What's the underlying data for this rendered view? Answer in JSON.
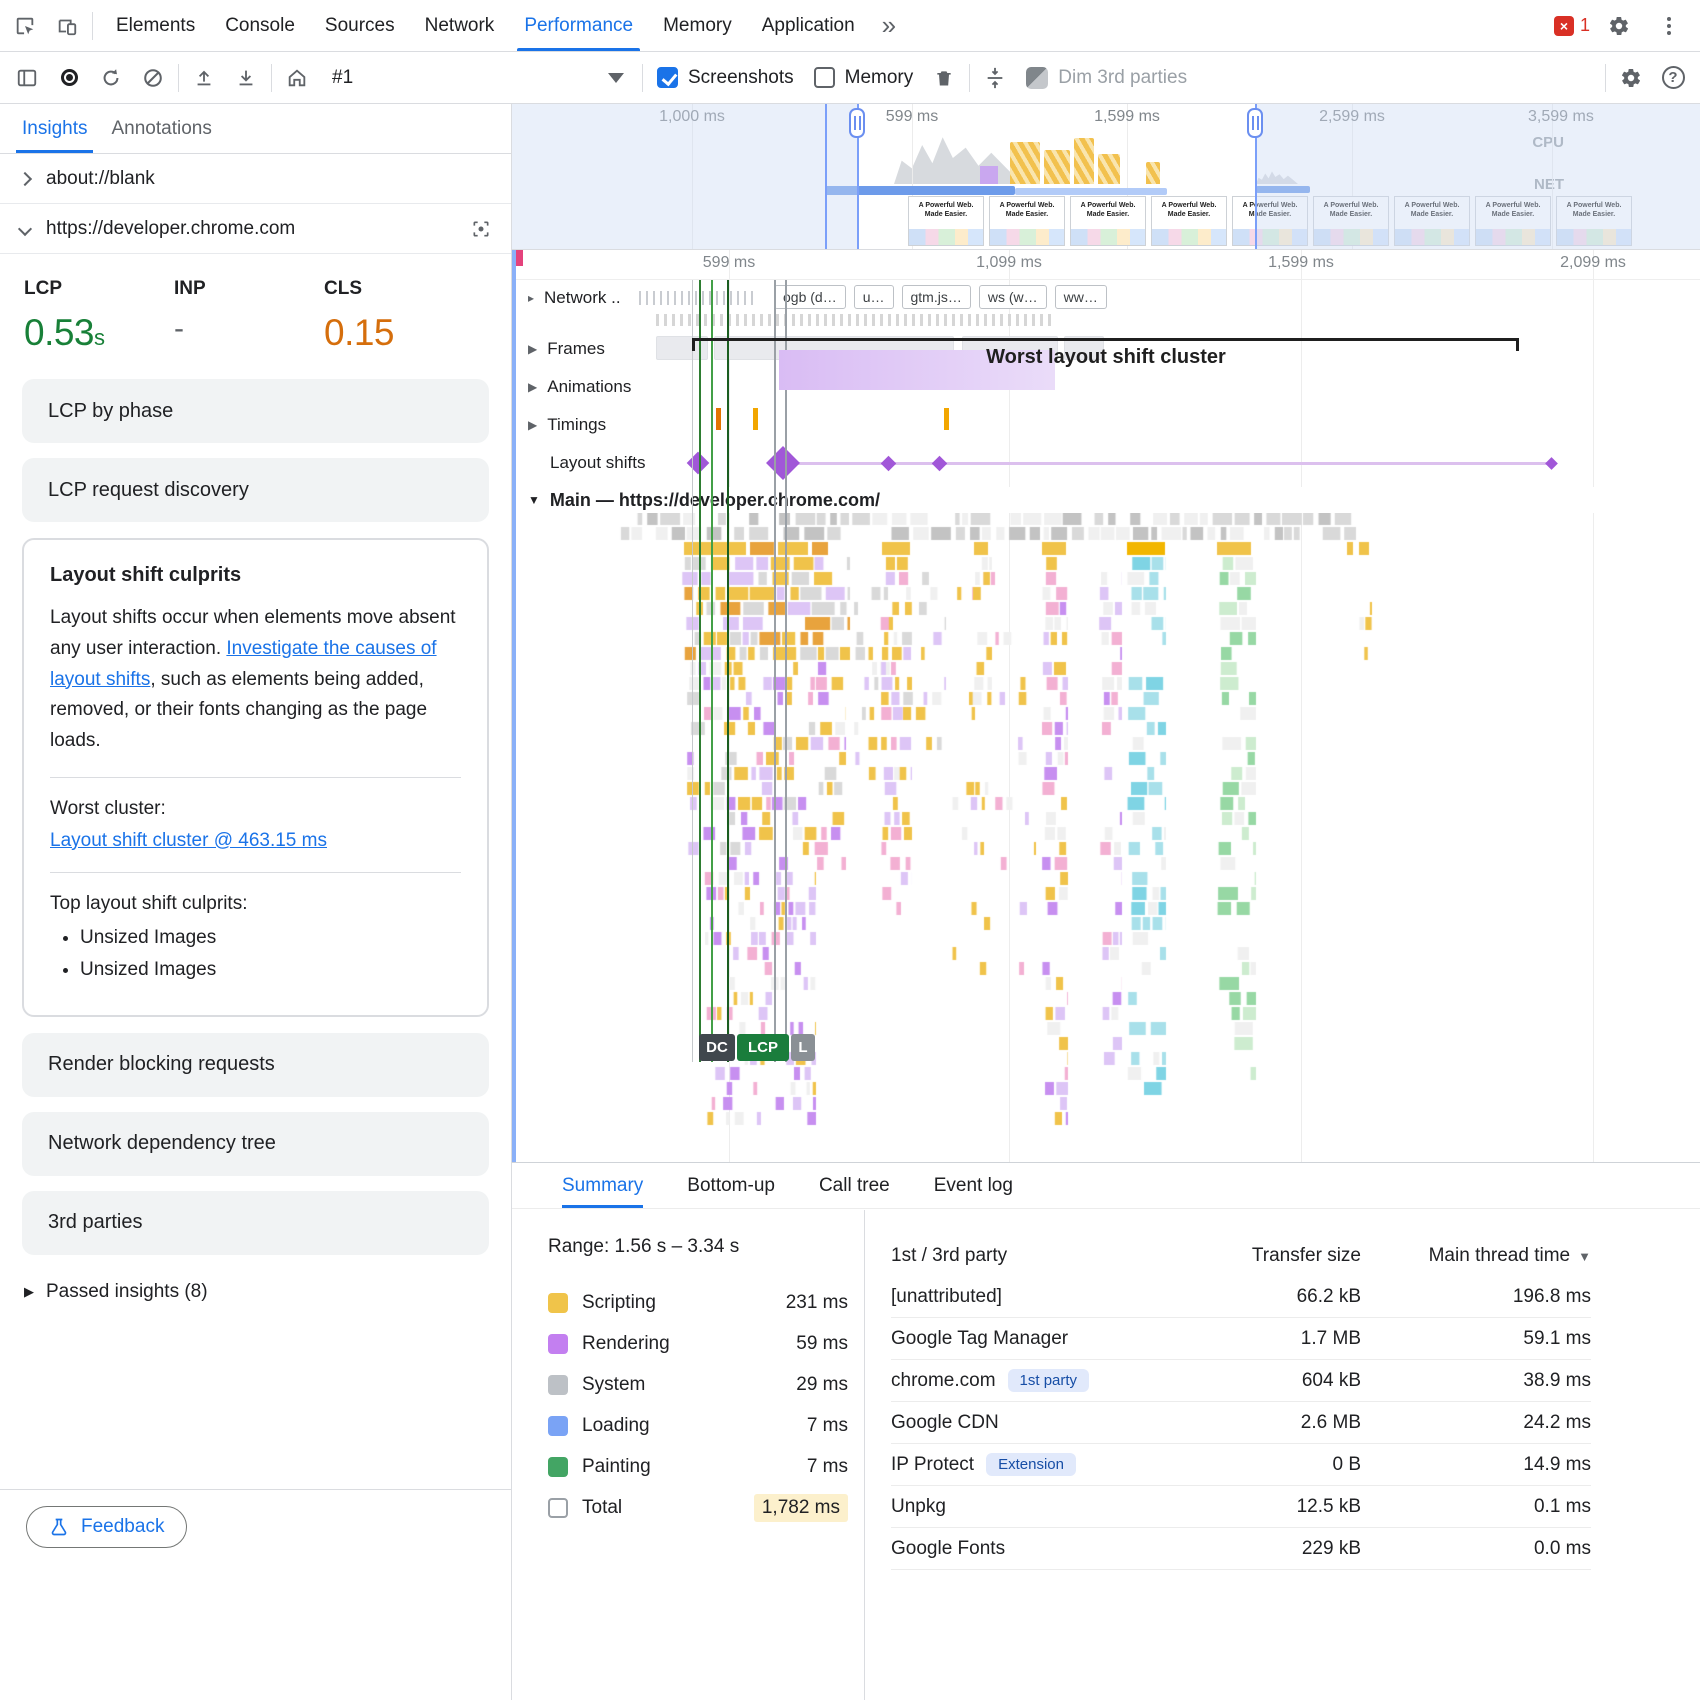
{
  "colors": {
    "accent": "#1a73e8",
    "good": "#188038",
    "warn": "#d56e0c",
    "error": "#d93025",
    "layout_shift": "#a157d8"
  },
  "icons": {
    "expand_collapsed": "▸",
    "expand_row": "▶",
    "expand_expanded": "▼",
    "sort_desc": "▼",
    "error_x": "×",
    "help": "?",
    "more_tabs": "»"
  },
  "tabbar": {
    "tabs": [
      "Elements",
      "Console",
      "Sources",
      "Network",
      "Performance",
      "Memory",
      "Application"
    ],
    "active_tab": "Performance",
    "error_count": "1"
  },
  "toolbar": {
    "profile_label": "#1",
    "screenshots_label": "Screenshots",
    "memory_label": "Memory",
    "dim_label": "Dim 3rd parties"
  },
  "sidebar": {
    "tabs": [
      "Insights",
      "Annotations"
    ],
    "active_tab": "Insights",
    "nav_blank": "about://blank",
    "nav_site": "https://developer.chrome.com",
    "metrics": [
      {
        "label": "LCP",
        "value": "0.53",
        "unit": "s",
        "tone": "good"
      },
      {
        "label": "INP",
        "value": "-",
        "tone": "none"
      },
      {
        "label": "CLS",
        "value": "0.15",
        "tone": "warn"
      }
    ],
    "cards_top": [
      "LCP by phase",
      "LCP request discovery"
    ],
    "culprits": {
      "title": "Layout shift culprits",
      "body_before_link": "Layout shifts occur when elements move absent any user interaction. ",
      "link": "Investigate the causes of layout shifts",
      "body_after_link": ", such as elements being added, removed, or their fonts changing as the page loads.",
      "worst_label": "Worst cluster:",
      "worst_link": "Layout shift cluster @ 463.15 ms",
      "top_label": "Top layout shift culprits:",
      "items": [
        "Unsized Images",
        "Unsized Images"
      ]
    },
    "cards_bottom": [
      "Render blocking requests",
      "Network dependency tree",
      "3rd parties"
    ],
    "passed_insights": "Passed insights (8)",
    "feedback_label": "Feedback"
  },
  "overview": {
    "ruler": [
      "1,000 ms",
      "599 ms",
      "1,599 ms",
      "2,599 ms",
      "3,599 ms"
    ],
    "cpu_label": "CPU",
    "net_label": "NET",
    "thumb_caption": "A Powerful Web. Made Easier."
  },
  "tracks": {
    "ruler": [
      "599 ms",
      "1,099 ms",
      "1,599 ms",
      "2,099 ms"
    ],
    "network_label": "Network ..",
    "network_chips": [
      "ogb (d…",
      "u…",
      "gtm.js…",
      "ws (w…",
      "ww…"
    ],
    "row_labels": [
      "Frames",
      "Animations",
      "Timings",
      "Layout shifts"
    ],
    "annotation": "Worst layout shift cluster",
    "main_label": "Main — https://developer.chrome.com/",
    "markers": [
      "DC",
      "LCP",
      "L"
    ]
  },
  "bottom": {
    "tabs": [
      "Summary",
      "Bottom-up",
      "Call tree",
      "Event log"
    ],
    "active_tab": "Summary",
    "range": "Range: 1.56 s – 3.34 s",
    "legend": [
      {
        "label": "Scripting",
        "value": "231 ms",
        "color": "#f0c44a"
      },
      {
        "label": "Rendering",
        "value": "59 ms",
        "color": "#c37ff0"
      },
      {
        "label": "System",
        "value": "29 ms",
        "color": "#bdc1c6"
      },
      {
        "label": "Loading",
        "value": "7 ms",
        "color": "#7aa3f5"
      },
      {
        "label": "Painting",
        "value": "7 ms",
        "color": "#43a564"
      },
      {
        "label": "Total",
        "value": "1,782 ms",
        "color": "#ffffff",
        "is_total": true
      }
    ],
    "table": {
      "headers": [
        "1st / 3rd party",
        "Transfer size",
        "Main thread time"
      ],
      "rows": [
        {
          "name": "[unattributed]",
          "transfer": "66.2 kB",
          "time": "196.8 ms"
        },
        {
          "name": "Google Tag Manager",
          "transfer": "1.7 MB",
          "time": "59.1 ms"
        },
        {
          "name": "chrome.com",
          "badge": "1st party",
          "transfer": "604 kB",
          "time": "38.9 ms"
        },
        {
          "name": "Google CDN",
          "transfer": "2.6 MB",
          "time": "24.2 ms"
        },
        {
          "name": "IP Protect",
          "badge": "Extension",
          "transfer": "0 B",
          "time": "14.9 ms"
        },
        {
          "name": "Unpkg",
          "transfer": "12.5 kB",
          "time": "0.1 ms"
        },
        {
          "name": "Google Fonts",
          "transfer": "229 kB",
          "time": "0.0 ms"
        }
      ]
    }
  }
}
